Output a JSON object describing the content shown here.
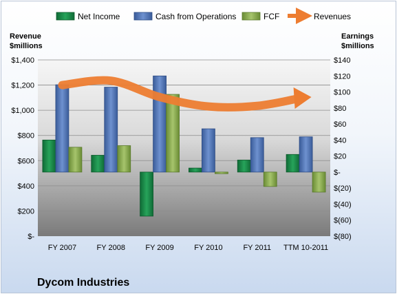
{
  "chart_data": {
    "type": "bar",
    "title": "Dycom Industries",
    "categories": [
      "FY 2007",
      "FY 2008",
      "FY 2009",
      "FY 2010",
      "FY 2011",
      "TTM 10-2011"
    ],
    "left_axis": {
      "label_line1": "Revenue",
      "label_line2": "$millions",
      "ylim": [
        0,
        1400
      ],
      "ticks": [
        0,
        200,
        400,
        600,
        800,
        1000,
        1200,
        1400
      ],
      "tick_labels": [
        "$-",
        "$200",
        "$400",
        "$600",
        "$800",
        "$1,000",
        "$1,200",
        "$1,400"
      ]
    },
    "right_axis": {
      "label_line1": "Earnings",
      "label_line2": "$millions",
      "ylim": [
        -80,
        140
      ],
      "ticks": [
        -80,
        -60,
        -40,
        -20,
        0,
        20,
        40,
        60,
        80,
        100,
        120,
        140
      ],
      "tick_labels": [
        "$(80)",
        "$(60)",
        "$(40)",
        "$(20)",
        "$-",
        "$20",
        "$40",
        "$60",
        "$80",
        "$100",
        "$120",
        "$140"
      ]
    },
    "series": [
      {
        "name": "Net Income",
        "axis": "right",
        "kind": "bar",
        "color": "#1e8a4c",
        "values": [
          40,
          21,
          -55,
          5,
          15,
          22
        ]
      },
      {
        "name": "Cash from Operations",
        "axis": "right",
        "kind": "bar",
        "color": "#4e74b7",
        "values": [
          109,
          106,
          120,
          54,
          43,
          44
        ]
      },
      {
        "name": "FCF",
        "axis": "right",
        "kind": "bar",
        "color": "#86ad4a",
        "values": [
          31,
          33,
          97,
          -2,
          -18,
          -25
        ]
      },
      {
        "name": "Revenues",
        "axis": "left",
        "kind": "line",
        "color": "#ed7d31",
        "values": [
          1200,
          1235,
          1105,
          1030,
          1035,
          1105
        ]
      }
    ],
    "grid": true,
    "legend_position": "top"
  }
}
